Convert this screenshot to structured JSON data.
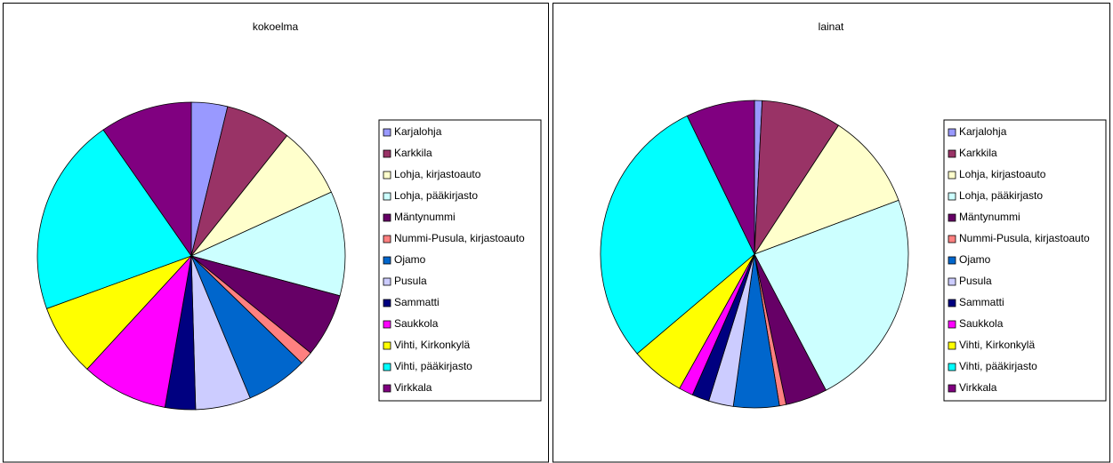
{
  "chart_data": [
    {
      "type": "pie",
      "title": "kokoelma",
      "categories": [
        "Karjalohja",
        "Karkkila",
        "Lohja, kirjastoauto",
        "Lohja, pääkirjasto",
        "Mäntynummi",
        "Nummi-Pusula, kirjastoauto",
        "Ojamo",
        "Pusula",
        "Sammatti",
        "Saukkola",
        "Vihti, Kirkonkylä",
        "Vihti, pääkirjasto",
        "Virkkala"
      ],
      "values": [
        3.8,
        6.9,
        7.5,
        11.0,
        6.7,
        1.4,
        6.5,
        5.8,
        3.2,
        9.1,
        7.6,
        20.9,
        9.7
      ],
      "colors": [
        "#9999ff",
        "#993366",
        "#ffffcc",
        "#ccffff",
        "#660066",
        "#ff8080",
        "#0066cc",
        "#ccccff",
        "#000080",
        "#ff00ff",
        "#ffff00",
        "#00ffff",
        "#800080"
      ]
    },
    {
      "type": "pie",
      "title": "lainat",
      "categories": [
        "Karjalohja",
        "Karkkila",
        "Lohja, kirjastoauto",
        "Lohja, pääkirjasto",
        "Mäntynummi",
        "Nummi-Pusula, kirjastoauto",
        "Ojamo",
        "Pusula",
        "Sammatti",
        "Saukkola",
        "Vihti, Kirkonkylä",
        "Vihti, pääkirjasto",
        "Virkkala"
      ],
      "values": [
        0.8,
        8.4,
        10.1,
        23.0,
        4.4,
        0.7,
        4.8,
        2.6,
        1.8,
        1.5,
        5.7,
        29.0,
        7.2
      ],
      "colors": [
        "#9999ff",
        "#993366",
        "#ffffcc",
        "#ccffff",
        "#660066",
        "#ff8080",
        "#0066cc",
        "#ccccff",
        "#000080",
        "#ff00ff",
        "#ffff00",
        "#00ffff",
        "#800080"
      ]
    }
  ]
}
